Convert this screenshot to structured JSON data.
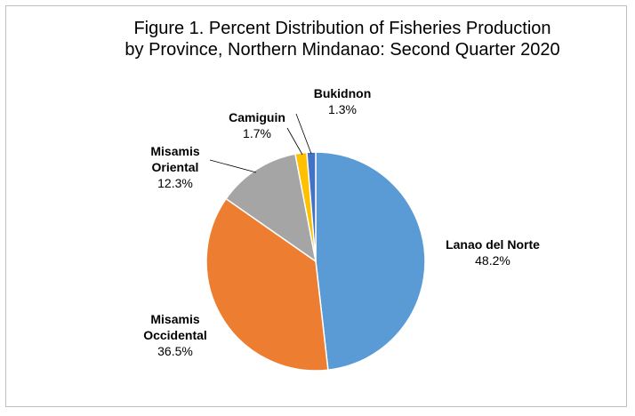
{
  "chart_data": {
    "type": "pie",
    "title_line1": "Figure 1.  Percent  Distribution of  Fisheries  Production",
    "title_line2": "by Province, Northern Mindanao: Second Quarter 2020",
    "slices": [
      {
        "name_lines": [
          "Lanao del Norte"
        ],
        "value": 48.2,
        "value_label": "48.2%",
        "color": "#5b9bd5"
      },
      {
        "name_lines": [
          "Misamis",
          "Occidental"
        ],
        "value": 36.5,
        "value_label": "36.5%",
        "color": "#ed7d31"
      },
      {
        "name_lines": [
          "Misamis",
          "Oriental"
        ],
        "value": 12.3,
        "value_label": "12.3%",
        "color": "#a5a5a5"
      },
      {
        "name_lines": [
          "Camiguin"
        ],
        "value": 1.7,
        "value_label": "1.7%",
        "color": "#ffc000"
      },
      {
        "name_lines": [
          "Bukidnon"
        ],
        "value": 1.3,
        "value_label": "1.3%",
        "color": "#4472c4"
      }
    ]
  }
}
